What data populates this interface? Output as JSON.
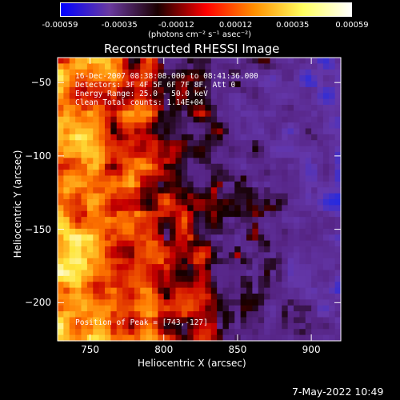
{
  "chart_data": {
    "type": "heatmap",
    "title": "Reconstructed RHESSI Image",
    "xlabel": "Heliocentric X (arcsec)",
    "ylabel": "Heliocentric Y (arcsec)",
    "xlim": [
      728,
      920
    ],
    "ylim": [
      -226,
      -33
    ],
    "x_ticks": [
      "750",
      "800",
      "850",
      "900"
    ],
    "x_tick_values": [
      750,
      800,
      850,
      900
    ],
    "y_ticks": [
      "-50",
      "-100",
      "-150",
      "-200"
    ],
    "y_tick_values": [
      -50,
      -100,
      -150,
      -200
    ],
    "colorbar": {
      "ticks": [
        "-0.00059",
        "-0.00035",
        "-0.00012",
        "0.00012",
        "0.00035",
        "0.00059"
      ],
      "tick_values": [
        -0.00059,
        -0.00035,
        -0.00012,
        0.00012,
        0.00035,
        0.00059
      ],
      "units": "(photons cm⁻² s⁻¹ asec⁻²)",
      "colors": [
        "#0000ff",
        "#6a3aa0",
        "#1a0000",
        "#ff0000",
        "#ff9000",
        "#ffff60",
        "#ffffff"
      ]
    },
    "annotations": {
      "time": "16-Dec-2007 08:38:08.000 to 08:41:36.000",
      "detectors": "Detectors: 3F 4F 5F 6F 7F 8F, Att 0",
      "energy": "Energy Range: 25.0 - 50.0 keV",
      "method": "Clean     Total counts: 1.14E+04",
      "peak": "Position of Peak = [743,-127]"
    }
  },
  "footer": "7-May-2022 10:49"
}
